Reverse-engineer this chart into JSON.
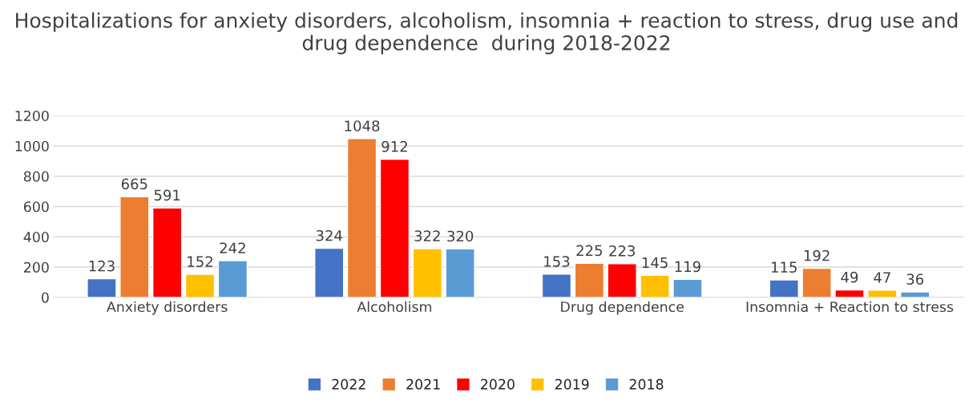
{
  "chart_data": {
    "type": "bar",
    "title": "Hospitalizations for anxiety disorders, alcoholism, insomnia + reaction to stress, drug use and drug dependence  during 2018-2022",
    "categories": [
      "Anxiety disorders",
      "Alcoholism",
      "Drug dependence",
      "Insomnia + Reaction to stress"
    ],
    "series": [
      {
        "name": "2022",
        "color": "#4472c4",
        "values": [
          123,
          324,
          153,
          115
        ]
      },
      {
        "name": "2021",
        "color": "#ed7d31",
        "values": [
          665,
          1048,
          225,
          192
        ]
      },
      {
        "name": "2020",
        "color": "#ff0000",
        "values": [
          591,
          912,
          223,
          49
        ]
      },
      {
        "name": "2019",
        "color": "#ffc000",
        "values": [
          152,
          322,
          145,
          47
        ]
      },
      {
        "name": "2018",
        "color": "#5b9bd5",
        "values": [
          242,
          320,
          119,
          36
        ]
      }
    ],
    "ylim": [
      0,
      1200
    ],
    "yticks": [
      0,
      200,
      400,
      600,
      800,
      1000,
      1200
    ],
    "grid": "y",
    "legend": "bottom",
    "data_labels": true
  }
}
